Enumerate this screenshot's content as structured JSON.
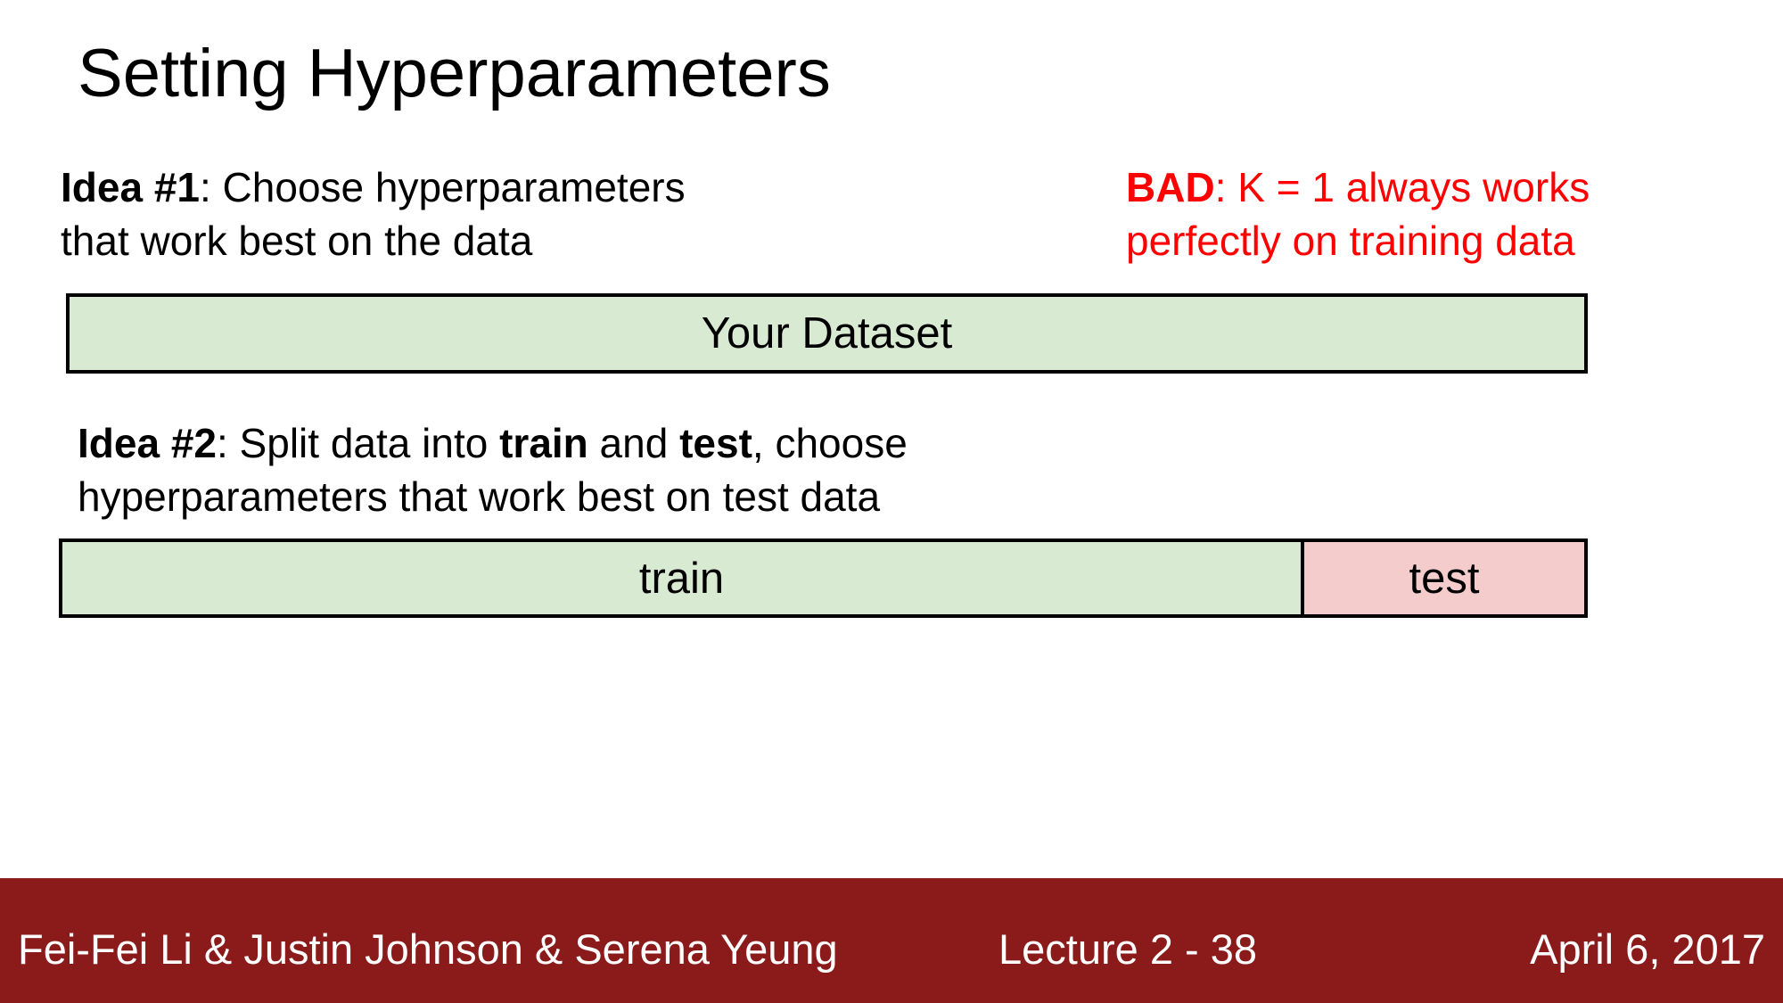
{
  "title": "Setting Hyperparameters",
  "idea1": {
    "label": "Idea #1",
    "line1": ": Choose hyperparameters",
    "line2": "that work best on the data"
  },
  "bad_note": {
    "label": "BAD",
    "line1": ": K = 1 always works",
    "line2": "perfectly on training data",
    "color": "#ff0000"
  },
  "dataset_bar": {
    "label": "Your Dataset",
    "color": "#d9ead3"
  },
  "idea2": {
    "label": "Idea #2",
    "text1": ": Split data into ",
    "train_word": "train",
    "text2": " and ",
    "test_word": "test",
    "text3": ", choose",
    "line2": "hyperparameters that work best on test data"
  },
  "split_bar": {
    "train_label": "train",
    "test_label": "test",
    "train_color": "#d9ead3",
    "test_color": "#f4cccc"
  },
  "footer": {
    "authors": "Fei-Fei Li & Justin Johnson & Serena Yeung",
    "lecture": "Lecture 2 -   38",
    "date": "April 6, 2017",
    "color": "#8b1a1a"
  }
}
